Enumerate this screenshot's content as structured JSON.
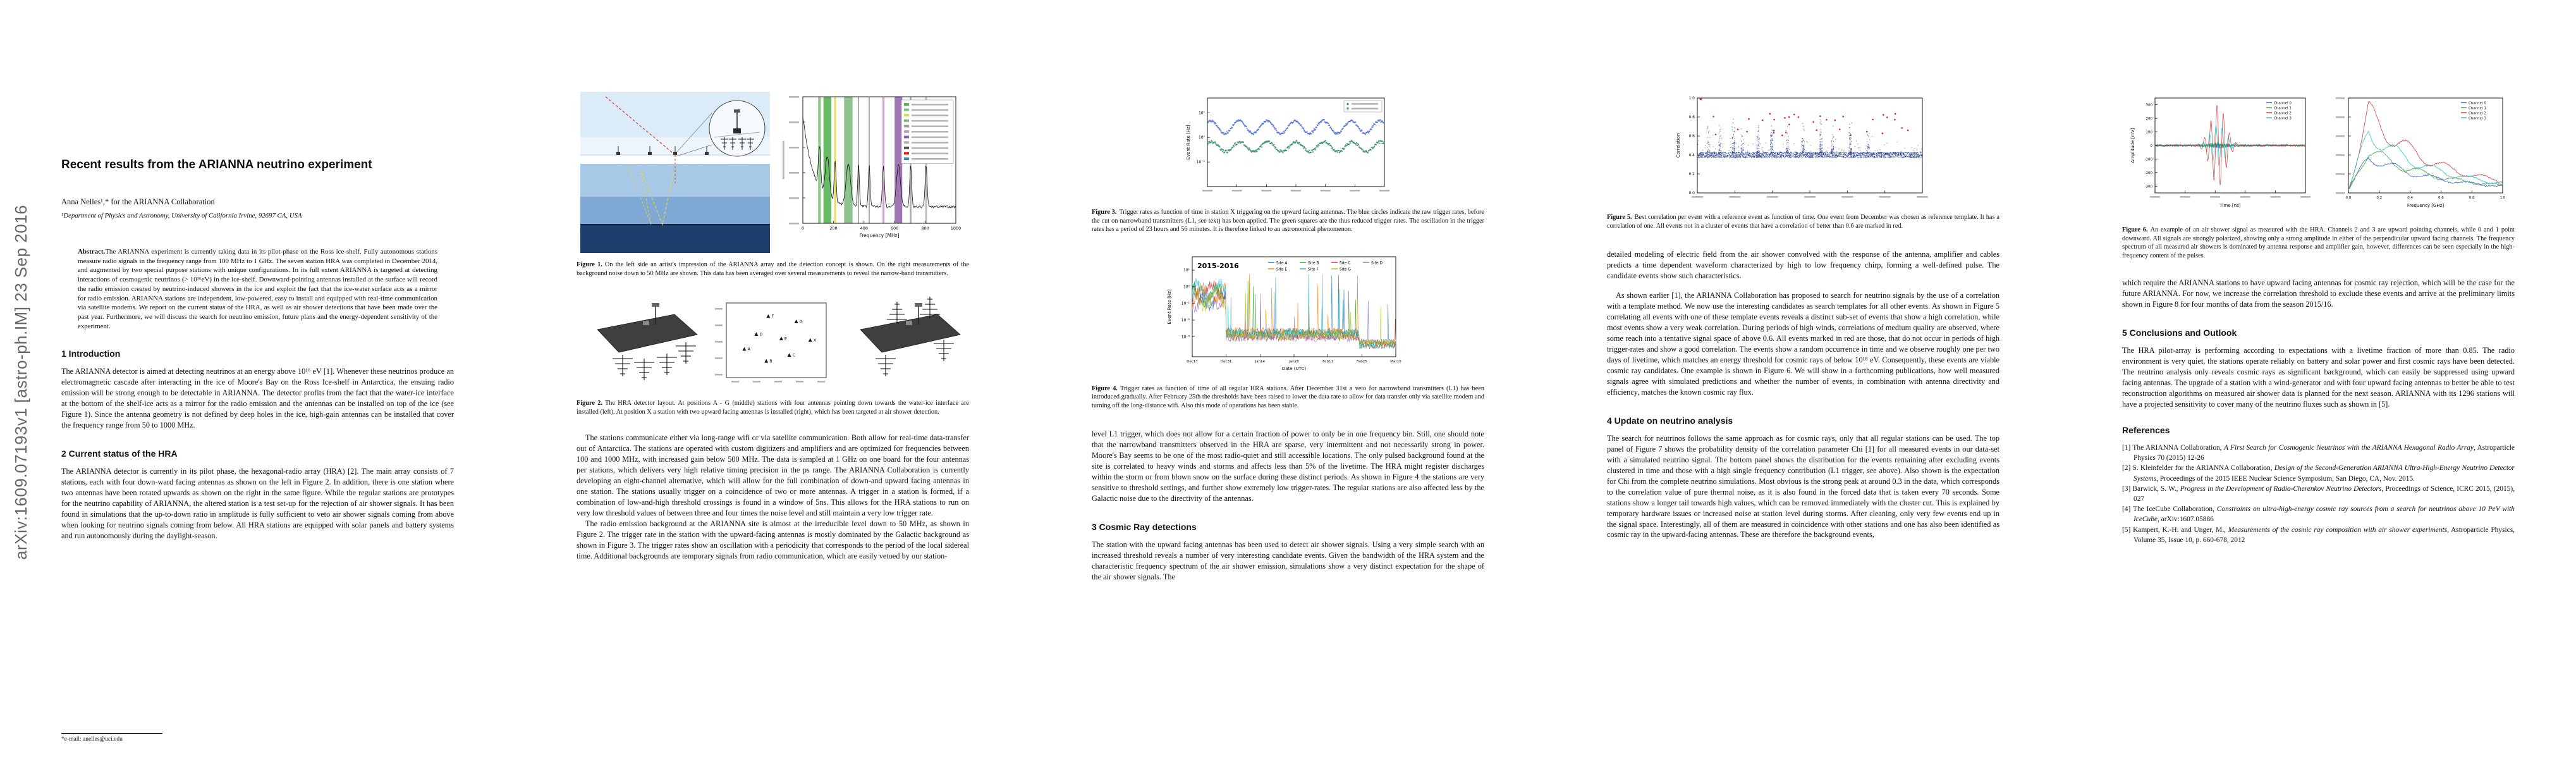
{
  "arxiv_stamp": "arXiv:1609.07193v1  [astro-ph.IM]  23 Sep 2016",
  "front": {
    "title": "Recent results from the ARIANNA neutrino experiment",
    "author": "Anna Nelles¹,* for the ARIANNA Collaboration",
    "affiliation": "¹Department of Physics and Astronomy, University of California Irvine, 92697 CA, USA",
    "footnote": "*e-mail: anelles@uci.edu"
  },
  "abstract": {
    "label": "Abstract.",
    "text": "The ARIANNA experiment is currently taking data in its pilot-phase on the Ross ice-shelf. Fully autonomous stations measure radio signals in the frequency range from 100 MHz to 1 GHz. The seven station HRA was completed in December 2014, and augmented by two special purpose stations with unique configurations. In its full extent ARIANNA is targeted at detecting interactions of cosmogenic neutrinos (> 10¹⁶eV) in the ice-shelf. Downward-pointing antennas installed at the surface will record the radio emission created by neutrino-induced showers in the ice and exploit the fact that the ice-water surface acts as a mirror for radio emission. ARIANNA stations are independent, low-powered, easy to install and equipped with real-time communication via satellite modems. We report on the current status of the HRA, as well as air shower detections that have been made over the past year. Furthermore, we will discuss the search for neutrino emission, future plans and the energy-dependent sensitivity of the experiment."
  },
  "sections": {
    "s1": {
      "heading": "1 Introduction",
      "body": "The ARIANNA detector is aimed at detecting neutrinos at an energy above 10¹⁶ eV [1]. Whenever these neutrinos produce an electromagnetic cascade after interacting in the ice of Moore's Bay on the Ross Ice-shelf in Antarctica, the ensuing radio emission will be strong enough to be detectable in ARIANNA. The detector profits from the fact that the water-ice interface at the bottom of the shelf-ice acts as a mirror for the radio emission and the antennas can be installed on top of the ice (see Figure 1). Since the antenna geometry is not defined by deep holes in the ice, high-gain antennas can be installed that cover the frequency range from 50 to 1000 MHz."
    },
    "s2": {
      "heading": "2 Current status of the HRA",
      "body": "The ARIANNA detector is currently in its pilot phase, the hexagonal-radio array (HRA) [2]. The main array consists of 7 stations, each with four down-ward facing antennas as shown on the left in Figure 2. In addition, there is one station where two antennas have been rotated upwards as shown on the right in the same figure. While the regular stations are prototypes for the neutrino capability of ARIANNA, the altered station is a test set-up for the rejection of air shower signals. It has been found in simulations that the up-to-down ratio in amplitude is fully sufficient to veto air shower signals coming from above when looking for neutrino signals coming from below. All HRA stations are equipped with solar panels and battery systems and run autonomously during the daylight-season."
    },
    "s3": {
      "heading": "3 Cosmic Ray detections",
      "body": "The station with the upward facing antennas has been used to detect air shower signals. Using a very simple search with an increased threshold reveals a number of very interesting candidate events. Given the bandwidth of the HRA system and the characteristic frequency spectrum of the air shower emission, simulations show a very distinct expectation for the shape of the air shower signals. The"
    },
    "s4": {
      "heading": "4 Update on neutrino analysis",
      "body": "The search for neutrinos follows the same approach as for cosmic rays, only that all regular stations can be used. The top panel of Figure 7 shows the probability density of the correlation parameter Chi [1] for all measured events in our data-set with a simulated neutrino signal. The bottom panel shows the distribution for the events remaining after excluding events clustered in time and those with a high single frequency contribution (L1 trigger, see above). Also shown is the expectation for Chi from the complete neutrino simulations. Most obvious is the strong peak at around 0.3 in the data, which corresponds to the correlation value of pure thermal noise, as it is also found in the forced data that is taken every 70 seconds. Some stations show a longer tail towards high values, which can be removed immediately with the cluster cut. This is explained by temporary hardware issues or increased noise at station level during storms. After cleaning, only very few events end up in the signal space. Interestingly, all of them are measured in coincidence with other stations and one has also been identified as cosmic ray in the upward-facing antennas. These are therefore the background events,"
    },
    "s5": {
      "heading": "5 Conclusions and Outlook",
      "body": "The HRA pilot-array is performing according to expectations with a livetime fraction of more than 0.85. The radio environment is very quiet, the stations operate reliably on battery and solar power and first cosmic rays have been detected. The neutrino analysis only reveals cosmic rays as significant background, which can easily be suppressed using upward facing antennas. The upgrade of a station with a wind-generator and with four upward facing antennas to better be able to test reconstruction algorithms on measured air shower data is planned for the next season. ARIANNA with its 1296 stations will have a projected sensitivity to cover many of the neutrino fluxes such as shown in [5]."
    }
  },
  "page2": {
    "para1": "The stations communicate either via long-range wifi or via satellite communication. Both allow for real-time data-transfer out of Antarctica. The stations are operated with custom digitizers and amplifiers and are optimized for frequencies between 100 and 1000 MHz, with increased gain below 500 MHz. The data is sampled at 1 GHz on one board for the four antennas per stations, which delivers very high relative timing precision in the ps range. The ARIANNA Collaboration is currently developing an eight-channel alternative, which will allow for the full combination of down-and upward facing antennas in one station. The stations usually trigger on a coincidence of two or more antennas. A trigger in a station is formed, if a combination of low-and-high threshold crossings is found in a window of 5ns. This allows for the HRA stations to run on very low threshold values of between three and four times the noise level and still maintain a very low trigger rate.",
    "para2": "The radio emission background at the ARIANNA site is almost at the irreducible level down to 50 MHz, as shown in Figure 2. The trigger rate in the station with the upward-facing antennas is mostly dominated by the Galactic background as shown in Figure 3. The trigger rates show an oscillation with a periodicity that corresponds to the period of the local sidereal time. Additional backgrounds are temporary signals from radio communication, which are easily vetoed by our station-"
  },
  "page3": {
    "para1": "level L1 trigger, which does not allow for a certain fraction of power to only be in one frequency bin. Still, one should note that the narrowband transmitters observed in the HRA are sparse, very intermittent and not necessarily strong in power. Moore's Bay seems to be one of the most radio-quiet and still accessible locations. The only pulsed background found at the site is correlated to heavy winds and storms and affects less than 5% of the livetime. The HRA might register discharges within the storm or from blown snow on the surface during these distinct periods. As shown in Figure 4 the stations are very sensitive to threshold settings, and further show extremely low trigger-rates. The regular stations are also affected less by the Galactic noise due to the directivity of the antennas."
  },
  "page4": {
    "para1": "detailed modeling of electric field from the air shower convolved with the response of the antenna, amplifier and cables predicts a time dependent waveform characterized by high to low frequency chirp, forming a well-defined pulse. The candidate events show such characteristics.",
    "para2": "As shown earlier [1], the ARIANNA Collaboration has proposed to search for neutrino signals by the use of a correlation with a template method. We now use the interesting candidates as search templates for all other events. As shown in Figure 5 correlating all events with one of these template events reveals a distinct sub-set of events that show a high correlation, while most events show a very weak correlation. During periods of high winds, correlations of medium quality are observed, where some reach into a tentative signal space of above 0.6. All events marked in red are those, that do not occur in periods of high trigger-rates and show a good correlation. The events show a random occurrence in time and we observe roughly one per two days of livetime, which matches an energy threshold for cosmic rays of below 10¹⁸ eV. Consequently, these events are viable cosmic ray candidates. One example is shown in Figure 6. We will show in a forthcoming publications, how well measured signals agree with simulated predictions and whether the number of events, in combination with antenna directivity and efficiency, matches the known cosmic ray flux."
  },
  "page5": {
    "para1": "which require the ARIANNA stations to have upward facing antennas for cosmic ray rejection, which will be the case for the future ARIANNA. For now, we increase the correlation threshold to exclude these events and arrive at the preliminary limits shown in Figure 8 for four months of data from the season 2015/16."
  },
  "figures": {
    "fig1": {
      "label": "Figure 1.",
      "caption": "On the left side an artist's impression of the ARIANNA array and the detection concept is shown. On the right measurements of the background noise down to 50 MHz are shown. This data has been averaged over several measurements to reveal the narrow-band transmitters.",
      "plot": {
        "xlabel": "Frequency [MHz]",
        "xticks": [
          "0",
          "200",
          "400",
          "600",
          "800",
          "1000"
        ],
        "bands": [
          {
            "x": 0.1,
            "w": 0.018,
            "c": "#7fbf7f"
          },
          {
            "x": 0.135,
            "w": 0.05,
            "c": "#4daf4a"
          },
          {
            "x": 0.205,
            "w": 0.012,
            "c": "#d9d94a"
          },
          {
            "x": 0.27,
            "w": 0.055,
            "c": "#79b879"
          },
          {
            "x": 0.36,
            "w": 0.008,
            "c": "#9a9a9a"
          },
          {
            "x": 0.43,
            "w": 0.008,
            "c": "#9a9a9a"
          },
          {
            "x": 0.52,
            "w": 0.014,
            "c": "#c49ac4"
          },
          {
            "x": 0.6,
            "w": 0.05,
            "c": "#8e5fa8"
          },
          {
            "x": 0.7,
            "w": 0.01,
            "c": "#9a9a9a"
          },
          {
            "x": 0.8,
            "w": 0.012,
            "c": "#b0b0b0"
          }
        ],
        "legend_colors": [
          "#4daf4a",
          "#7fbf7f",
          "#d9d94a",
          "#79b879",
          "#9a9a9a",
          "#c49ac4",
          "#8e5fa8",
          "#b0b0b0",
          "#555555",
          "#e41a1c",
          "#377eb8"
        ]
      }
    },
    "fig2": {
      "label": "Figure 2.",
      "caption": "The HRA detector layout. At positions A - G (middle) stations with four antennas pointing down towards the water-ice interface are installed (left). At position X a station with two upward facing antennas is installed (right), which has been targeted at air shower detection.",
      "map_labels": [
        "A",
        "B",
        "C",
        "D",
        "E",
        "F",
        "G",
        "X"
      ]
    },
    "fig3": {
      "label": "Figure 3.",
      "caption": "Trigger rates as function of time in station X triggering on the upward facing antennas. The blue circles indicate the raw trigger rates, before the cut on narrowband transmitters (L1, see text) has been applied. The green squares are the thus reduced trigger rates. The oscillation in the trigger rates has a period of 23 hours and 56 minutes. It is therefore linked to an astronomical phenomenon.",
      "ylabel": "Event Rate [Hz]",
      "yticks": [
        "10⁻¹",
        "10⁰",
        "10¹"
      ],
      "colors": {
        "raw": "#3b5fd0",
        "reduced": "#2e8b57"
      }
    },
    "fig4": {
      "label": "Figure 4.",
      "caption": "Trigger rates as function of time of all regular HRA stations. After December 31st a veto for narrowband transmitters (L1) has been introduced gradually. After February 25th the thresholds have been raised to lower the data rate to allow for data transfer only via satellite modem and turning off the long-distance wifi. Also this mode of operations has been stable.",
      "title": "2015-2016",
      "ylabel": "Event Rate [Hz]",
      "xlabel": "Date (UTC)",
      "xticks": [
        "Dec17",
        "Dec31",
        "Jan14",
        "Jan28",
        "Feb11",
        "Feb25",
        "Mar10"
      ],
      "yticks": [
        "10⁻³",
        "10⁻²",
        "10⁻¹",
        "10⁰",
        "10¹"
      ],
      "legend": [
        "Site A",
        "Site B",
        "Site C",
        "Site D",
        "Site E",
        "Site F",
        "Site G"
      ],
      "colors": [
        "#1f77b4",
        "#2ca02c",
        "#d62728",
        "#9467bd",
        "#ff7f0e",
        "#17becf",
        "#bcbd22"
      ]
    },
    "fig5": {
      "label": "Figure 5.",
      "caption": "Best correlation per event with a reference event as function of time. One event from December was chosen as reference template. It has a correlation of one. All events not in a cluster of events that have a correlation of better than 0.6 are marked in red.",
      "ylabel": "Correlation",
      "yticks": [
        "0.0",
        "0.2",
        "0.4",
        "0.6",
        "0.8",
        "1.0"
      ],
      "point_color": "#16307e",
      "outlier_color": "#d62728"
    },
    "fig6": {
      "label": "Figure 6.",
      "caption": "An example of an air shower signal as measured with the HRA. Channels 2 and 3 are upward pointing channels, while 0 and 1 point downward. All signals are strongly polarized, showing only a strong amplitude in either of the perpendicular upward facing channels. The frequency spectrum of all measured air showers is dominated by antenna response and amplifier gain, however, differences can be seen especially in the high-frequency content of the pulses.",
      "left": {
        "xlabel": "Time [ns]",
        "ylabel": "Amplitude [mV]",
        "yticks": [
          "-300",
          "-200",
          "-100",
          "0",
          "100",
          "200",
          "300"
        ]
      },
      "right": {
        "xlabel": "Frequency [GHz]",
        "xticks": [
          "0.0",
          "0.2",
          "0.4",
          "0.6",
          "0.8",
          "1.0"
        ]
      },
      "legend": [
        "Channel 0",
        "Channel 1",
        "Channel 2",
        "Channel 3"
      ],
      "colors": [
        "#1f4fd8",
        "#2ca02c",
        "#d62728",
        "#17becf"
      ]
    }
  },
  "references": {
    "heading": "References",
    "items": [
      {
        "pre": "[1] The ARIANNA Collaboration, ",
        "italic": "A First Search for Cosmogenic Neutrinos with the ARIANNA Hexagonal Radio Array",
        "post": ", Astroparticle Physics 70 (2015) 12-26"
      },
      {
        "pre": "[2] S. Kleinfelder for the ARIANNA Collaboration, ",
        "italic": "Design of the Second-Generation ARIANNA Ultra-High-Energy Neutrino Detector Systems",
        "post": ", Proceedings of the 2015 IEEE Nuclear Science Symposium, San Diego, CA, Nov. 2015."
      },
      {
        "pre": "[3] Barwick, S. W., ",
        "italic": "Progress in the Development of Radio-Cherenkov Neutrino Detectors",
        "post": ", Proceedings of Science, ICRC 2015, (2015), 027"
      },
      {
        "pre": "[4] The IceCube Collaboration, ",
        "italic": "Constraints on ultra-high-energy cosmic ray sources from a search for neutrinos above 10 PeV with IceCube",
        "post": ", arXiv:1607.05886"
      },
      {
        "pre": "[5] Kampert, K.-H. and Unger, M., ",
        "italic": "Measurements of the cosmic ray composition with air shower experiments",
        "post": ", Astroparticle Physics, Volume 35, Issue 10, p. 660-678, 2012"
      }
    ]
  }
}
